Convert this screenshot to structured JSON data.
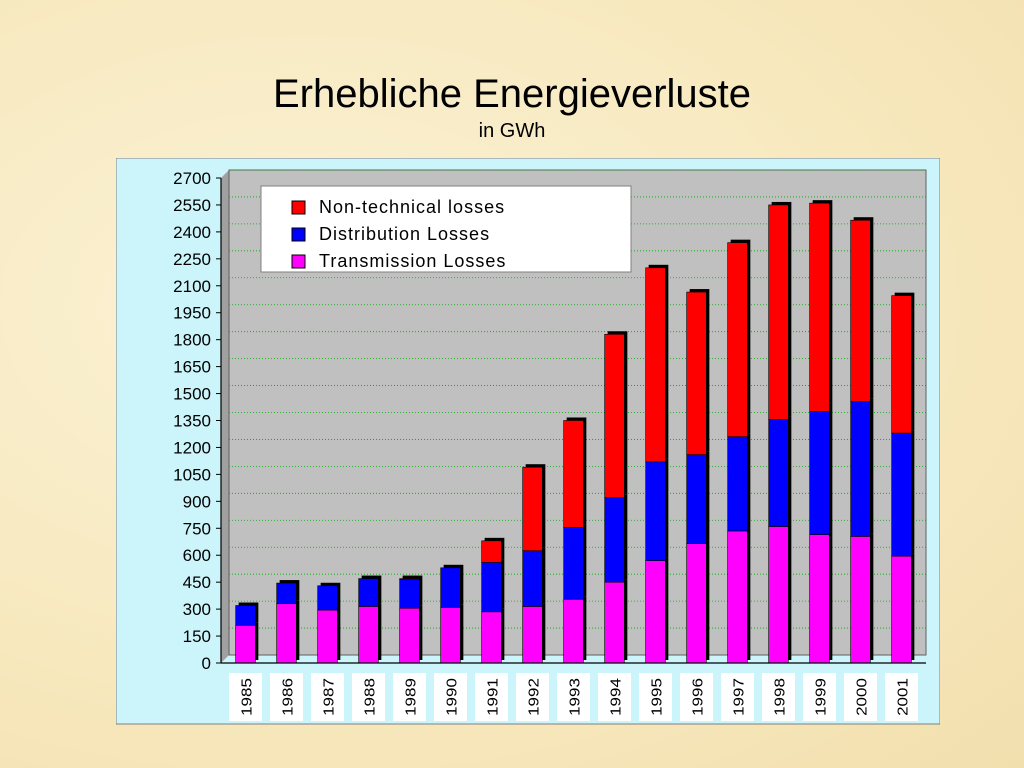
{
  "slide": {
    "title": "Erhebliche Energieverluste",
    "subtitle": "in GWh"
  },
  "colors": {
    "transmission": "#ff00ff",
    "distribution": "#0000ff",
    "nontechnical": "#ff0000",
    "plot_bg": "#c0c0c0",
    "frame_bg": "#ccf5fb",
    "grid": "#00aa00"
  },
  "chart_data": {
    "type": "bar",
    "stacked": true,
    "title": "",
    "xlabel": "",
    "ylabel": "",
    "ylim": [
      0,
      2700
    ],
    "yticks": [
      0,
      150,
      300,
      450,
      600,
      750,
      900,
      1050,
      1200,
      1350,
      1500,
      1650,
      1800,
      1950,
      2100,
      2250,
      2400,
      2550,
      2700
    ],
    "grid": true,
    "legend_position": "top-left",
    "categories": [
      "1985",
      "1986",
      "1987",
      "1988",
      "1989",
      "1990",
      "1991",
      "1992",
      "1993",
      "1994",
      "1995",
      "1996",
      "1997",
      "1998",
      "1999",
      "2000",
      "2001"
    ],
    "series": [
      {
        "name": "Transmission Losses",
        "color": "#ff00ff",
        "values": [
          210,
          330,
          295,
          315,
          305,
          310,
          285,
          315,
          355,
          450,
          570,
          665,
          735,
          760,
          715,
          705,
          595
        ]
      },
      {
        "name": "Distribution Losses",
        "color": "#0000ff",
        "values": [
          110,
          115,
          135,
          155,
          160,
          220,
          275,
          310,
          400,
          470,
          550,
          495,
          525,
          595,
          685,
          750,
          685
        ]
      },
      {
        "name": "Non-technical losses",
        "color": "#ff0000",
        "values": [
          0,
          0,
          0,
          0,
          5,
          0,
          120,
          465,
          595,
          910,
          1080,
          905,
          1080,
          1195,
          1160,
          1010,
          765
        ]
      }
    ],
    "legend": [
      "Non-technical losses",
      "Distribution Losses",
      "Transmission Losses"
    ]
  }
}
